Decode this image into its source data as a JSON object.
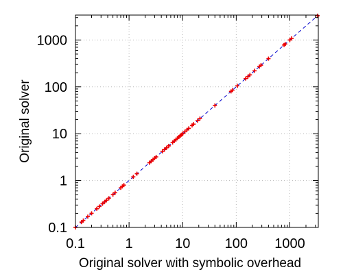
{
  "chart_data": {
    "type": "scatter",
    "title": "",
    "xlabel": "Original solver with symbolic overhead",
    "ylabel": "Original solver",
    "xscale": "log",
    "yscale": "log",
    "xlim": [
      0.1,
      3400
    ],
    "ylim": [
      0.1,
      3400
    ],
    "x_ticks": [
      {
        "value": 0.1,
        "label": "0.1"
      },
      {
        "value": 1,
        "label": "1"
      },
      {
        "value": 10,
        "label": "10"
      },
      {
        "value": 100,
        "label": "100"
      },
      {
        "value": 1000,
        "label": "1000"
      }
    ],
    "y_ticks": [
      {
        "value": 0.1,
        "label": "0.1"
      },
      {
        "value": 1,
        "label": "1"
      },
      {
        "value": 10,
        "label": "10"
      },
      {
        "value": 100,
        "label": "100"
      },
      {
        "value": 1000,
        "label": "1000"
      }
    ],
    "grid": true,
    "reference_line": {
      "style": "dashed",
      "color": "#0000cc",
      "slope": 1
    },
    "series": [
      {
        "color": "#ee0000",
        "marker": "plus",
        "points": [
          [
            0.1,
            0.1
          ],
          [
            0.13,
            0.13
          ],
          [
            0.14,
            0.14
          ],
          [
            0.17,
            0.17
          ],
          [
            0.2,
            0.2
          ],
          [
            0.25,
            0.25
          ],
          [
            0.28,
            0.28
          ],
          [
            0.32,
            0.32
          ],
          [
            0.35,
            0.35
          ],
          [
            0.38,
            0.38
          ],
          [
            0.42,
            0.42
          ],
          [
            0.5,
            0.5
          ],
          [
            0.55,
            0.55
          ],
          [
            0.7,
            0.7
          ],
          [
            0.75,
            0.75
          ],
          [
            0.8,
            0.8
          ],
          [
            1.2,
            1.2
          ],
          [
            1.4,
            1.4
          ],
          [
            2.4,
            2.4
          ],
          [
            2.6,
            2.6
          ],
          [
            2.8,
            2.8
          ],
          [
            3.0,
            3.0
          ],
          [
            3.2,
            3.2
          ],
          [
            4.2,
            4.2
          ],
          [
            4.6,
            4.6
          ],
          [
            5.0,
            5.0
          ],
          [
            5.5,
            5.5
          ],
          [
            6.5,
            6.5
          ],
          [
            7.0,
            7.0
          ],
          [
            7.5,
            7.5
          ],
          [
            8.0,
            8.0
          ],
          [
            8.5,
            8.5
          ],
          [
            9.0,
            9.0
          ],
          [
            9.5,
            9.5
          ],
          [
            10,
            10
          ],
          [
            11,
            11
          ],
          [
            12,
            12
          ],
          [
            13,
            13
          ],
          [
            15,
            15
          ],
          [
            16,
            16
          ],
          [
            19,
            19
          ],
          [
            21,
            21
          ],
          [
            40,
            40
          ],
          [
            80,
            80
          ],
          [
            85,
            85
          ],
          [
            105,
            105
          ],
          [
            150,
            150
          ],
          [
            165,
            165
          ],
          [
            180,
            180
          ],
          [
            220,
            220
          ],
          [
            270,
            270
          ],
          [
            290,
            290
          ],
          [
            400,
            400
          ],
          [
            780,
            780
          ],
          [
            820,
            820
          ],
          [
            1000,
            1000
          ],
          [
            1080,
            1080
          ],
          [
            3300,
            3300
          ]
        ]
      }
    ]
  }
}
